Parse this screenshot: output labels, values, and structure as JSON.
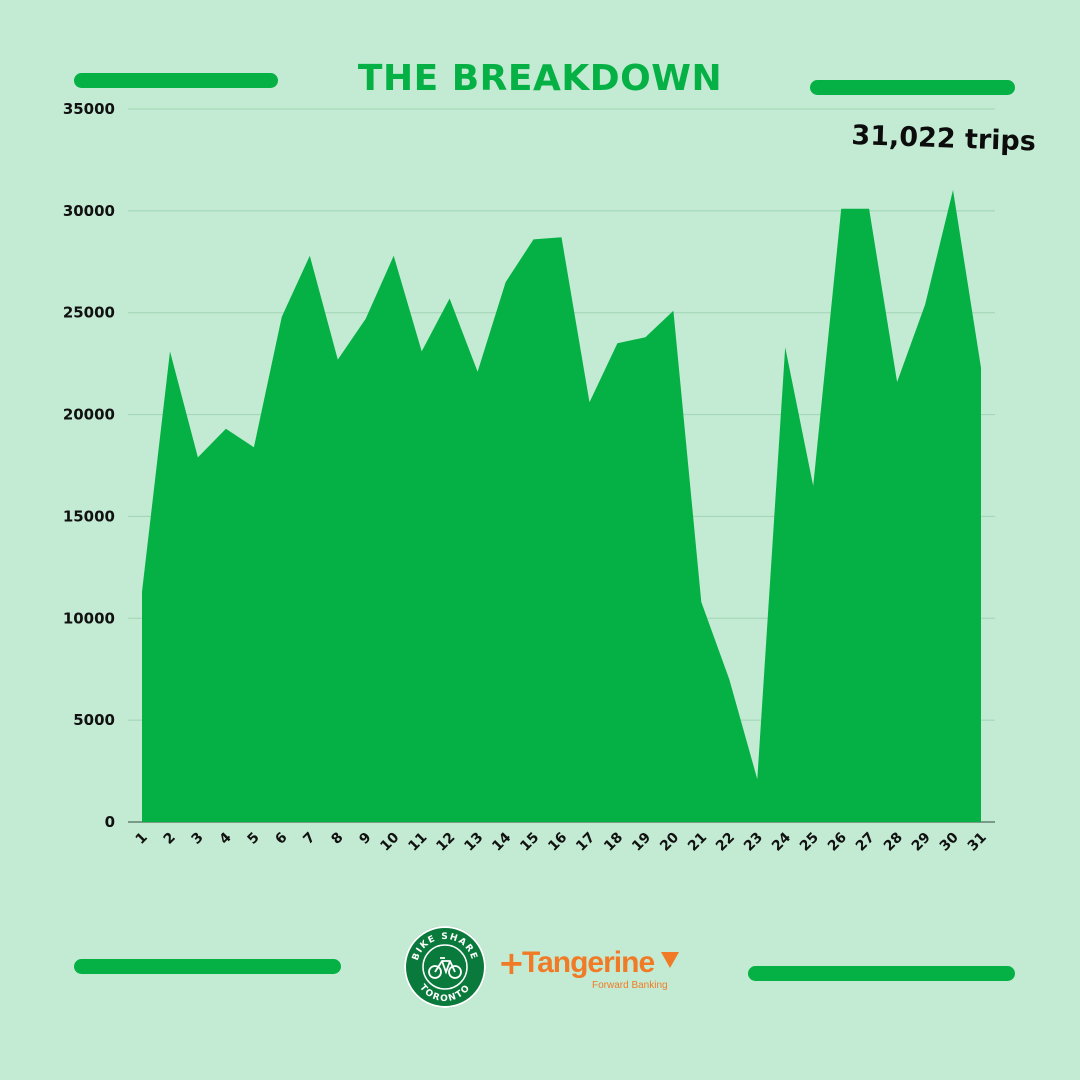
{
  "title": "THE BREAKDOWN",
  "annotation": "31,022 trips",
  "colors": {
    "background": "#c3ebd3",
    "accent": "#05b044",
    "grid": "#9fd4b3",
    "tangerine": "#f07a25"
  },
  "logos": {
    "bike_share": {
      "top_text": "BIKE SHARE",
      "bottom_text": "TORONTO",
      "icon": "bicycle-icon"
    },
    "plus": "+",
    "tangerine": {
      "name": "Tangerine",
      "tagline": "Forward Banking",
      "icon": "tangerine-chevron-icon"
    }
  },
  "chart_data": {
    "type": "area",
    "title": "",
    "xlabel": "",
    "ylabel": "",
    "x": [
      "1",
      "2",
      "3",
      "4",
      "5",
      "6",
      "7",
      "8",
      "9",
      "10",
      "11",
      "12",
      "13",
      "14",
      "15",
      "16",
      "17",
      "18",
      "19",
      "20",
      "21",
      "22",
      "23",
      "24",
      "25",
      "26",
      "27",
      "28",
      "29",
      "30",
      "31"
    ],
    "values": [
      11300,
      23100,
      17900,
      19300,
      18400,
      24800,
      27800,
      22700,
      24700,
      27800,
      23100,
      25700,
      22100,
      26500,
      28600,
      28700,
      20600,
      23500,
      23800,
      25100,
      10800,
      7000,
      2100,
      23300,
      16500,
      30100,
      30100,
      21600,
      25400,
      31022,
      22300
    ],
    "ylim": [
      0,
      35000
    ],
    "yticks": [
      "0",
      "5000",
      "10000",
      "15000",
      "20000",
      "25000",
      "30000",
      "35000"
    ],
    "grid": true,
    "legend": "none"
  }
}
